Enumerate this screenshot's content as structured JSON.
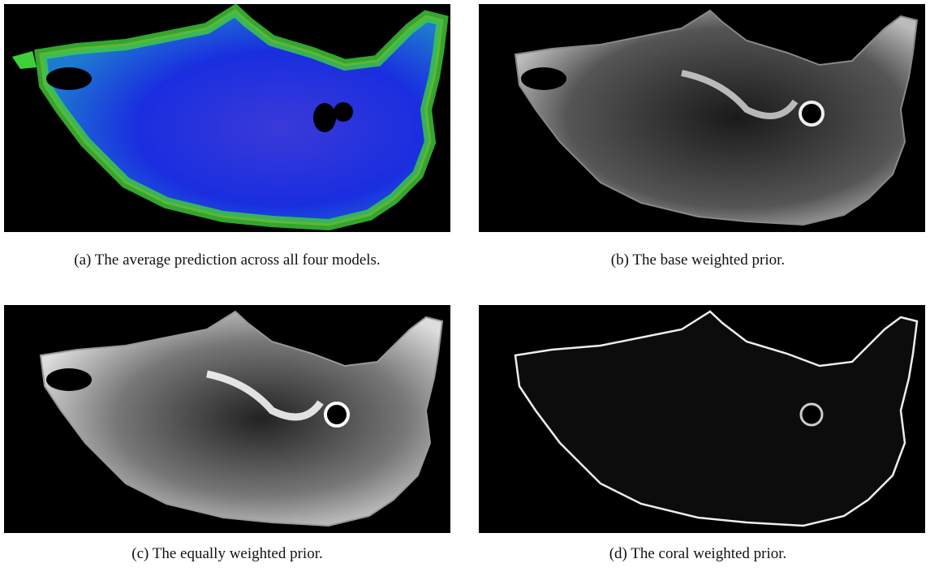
{
  "figure": {
    "panels": [
      {
        "caption": "(a) The average prediction across all four models."
      },
      {
        "caption": "(b) The base weighted prior."
      },
      {
        "caption": "(c) The equally weighted prior."
      },
      {
        "caption": "(d) The coral weighted prior."
      }
    ]
  }
}
